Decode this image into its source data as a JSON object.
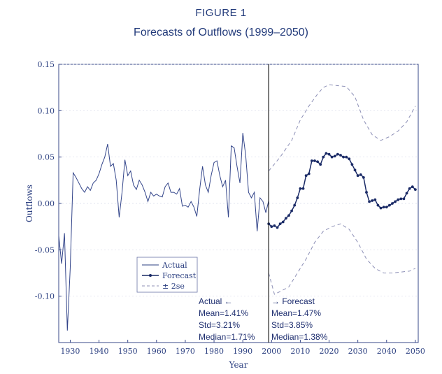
{
  "figure_label": "FIGURE 1",
  "title": "Forecasts of Outflows (1999–2050)",
  "chart_data": {
    "type": "line",
    "xlabel": "Year",
    "ylabel": "Outflows",
    "xlim": [
      1926,
      2051
    ],
    "ylim": [
      -0.15,
      0.15
    ],
    "x_ticks": [
      1930,
      1940,
      1950,
      1960,
      1970,
      1980,
      1990,
      2000,
      2010,
      2020,
      2030,
      2040,
      2050
    ],
    "y_ticks": [
      0.15,
      0.1,
      0.05,
      0.0,
      -0.05,
      -0.1
    ],
    "y_tick_labels": [
      "0.15",
      "0.10",
      "0.05",
      "0.00",
      "-0.05",
      "-0.10"
    ],
    "divider_x": 1999,
    "legend": {
      "placement": "lower-left",
      "entries": [
        "Actual",
        "Forecast",
        "± 2se"
      ]
    },
    "series": [
      {
        "name": "Actual",
        "style": "solid",
        "x": [
          1926,
          1927,
          1928,
          1929,
          1930,
          1931,
          1932,
          1933,
          1934,
          1935,
          1936,
          1937,
          1938,
          1939,
          1940,
          1941,
          1942,
          1943,
          1944,
          1945,
          1946,
          1947,
          1948,
          1949,
          1950,
          1951,
          1952,
          1953,
          1954,
          1955,
          1956,
          1957,
          1958,
          1959,
          1960,
          1961,
          1962,
          1963,
          1964,
          1965,
          1966,
          1967,
          1968,
          1969,
          1970,
          1971,
          1972,
          1973,
          1974,
          1975,
          1976,
          1977,
          1978,
          1979,
          1980,
          1981,
          1982,
          1983,
          1984,
          1985,
          1986,
          1987,
          1988,
          1989,
          1990,
          1991,
          1992,
          1993,
          1994,
          1995,
          1996,
          1997,
          1998,
          1999
        ],
        "values": [
          -0.035,
          -0.065,
          -0.032,
          -0.137,
          -0.07,
          0.033,
          0.028,
          0.022,
          0.016,
          0.012,
          0.018,
          0.014,
          0.022,
          0.025,
          0.032,
          0.042,
          0.05,
          0.064,
          0.04,
          0.043,
          0.025,
          -0.015,
          0.012,
          0.047,
          0.03,
          0.035,
          0.02,
          0.015,
          0.025,
          0.02,
          0.012,
          0.002,
          0.012,
          0.008,
          0.01,
          0.008,
          0.007,
          0.018,
          0.022,
          0.012,
          0.012,
          0.01,
          0.016,
          -0.003,
          -0.002,
          -0.004,
          0.002,
          -0.004,
          -0.014,
          0.015,
          0.04,
          0.02,
          0.012,
          0.03,
          0.044,
          0.046,
          0.03,
          0.018,
          0.025,
          -0.015,
          0.062,
          0.06,
          0.04,
          0.022,
          0.076,
          0.052,
          0.012,
          0.006,
          0.012,
          -0.03,
          0.006,
          0.002,
          -0.01,
          0.003
        ]
      },
      {
        "name": "Forecast",
        "style": "solid-markers",
        "x": [
          1999,
          2000,
          2001,
          2002,
          2003,
          2004,
          2005,
          2006,
          2007,
          2008,
          2009,
          2010,
          2011,
          2012,
          2013,
          2014,
          2015,
          2016,
          2017,
          2018,
          2019,
          2020,
          2021,
          2022,
          2023,
          2024,
          2025,
          2026,
          2027,
          2028,
          2029,
          2030,
          2031,
          2032,
          2033,
          2034,
          2035,
          2036,
          2037,
          2038,
          2039,
          2040,
          2041,
          2042,
          2043,
          2044,
          2045,
          2046,
          2047,
          2048,
          2049,
          2050
        ],
        "values": [
          -0.022,
          -0.025,
          -0.024,
          -0.026,
          -0.022,
          -0.02,
          -0.016,
          -0.013,
          -0.008,
          -0.002,
          0.006,
          0.016,
          0.016,
          0.03,
          0.032,
          0.046,
          0.046,
          0.045,
          0.042,
          0.05,
          0.054,
          0.053,
          0.05,
          0.051,
          0.053,
          0.052,
          0.05,
          0.05,
          0.048,
          0.042,
          0.036,
          0.03,
          0.031,
          0.028,
          0.012,
          0.002,
          0.003,
          0.004,
          -0.002,
          -0.005,
          -0.004,
          -0.004,
          -0.002,
          0.0,
          0.002,
          0.004,
          0.005,
          0.005,
          0.011,
          0.016,
          0.018,
          0.015
        ]
      },
      {
        "name": "± 2se upper",
        "style": "dashed",
        "x": [
          1999,
          2003,
          2007,
          2010,
          2013,
          2016,
          2018,
          2020,
          2023,
          2026,
          2029,
          2032,
          2035,
          2038,
          2041,
          2044,
          2047,
          2050
        ],
        "values": [
          0.035,
          0.05,
          0.068,
          0.09,
          0.105,
          0.118,
          0.125,
          0.128,
          0.127,
          0.126,
          0.115,
          0.09,
          0.074,
          0.068,
          0.072,
          0.078,
          0.088,
          0.105
        ]
      },
      {
        "name": "± 2se lower",
        "style": "dashed",
        "x": [
          1999,
          2001,
          2003,
          2006,
          2009,
          2012,
          2015,
          2018,
          2021,
          2024,
          2027,
          2030,
          2033,
          2036,
          2039,
          2042,
          2045,
          2048,
          2050
        ],
        "values": [
          -0.075,
          -0.098,
          -0.095,
          -0.09,
          -0.075,
          -0.06,
          -0.042,
          -0.03,
          -0.025,
          -0.022,
          -0.028,
          -0.042,
          -0.06,
          -0.07,
          -0.075,
          -0.075,
          -0.074,
          -0.073,
          -0.07
        ]
      }
    ],
    "annotations": {
      "left": [
        "Actual ←",
        "Mean=1.41%",
        "Std=3.21%",
        "Median=1.71%"
      ],
      "right": [
        "→ Forecast",
        "Mean=1.47%",
        "Std=3.85%",
        "Median=1.38%"
      ]
    }
  }
}
